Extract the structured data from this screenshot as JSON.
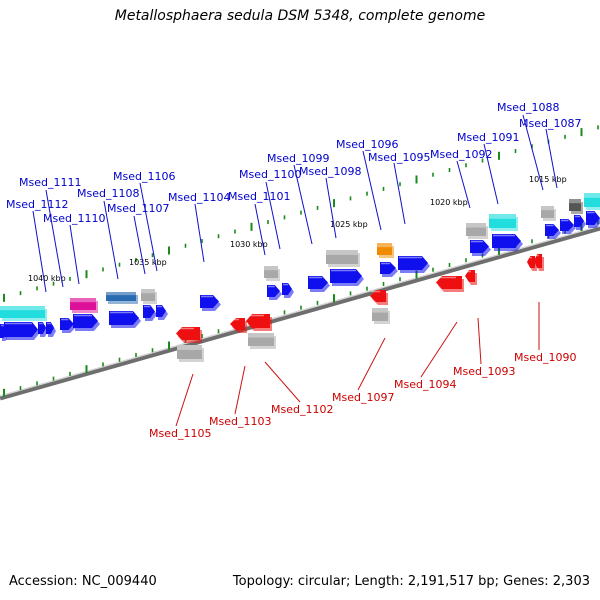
{
  "title": "Metallosphaera sedula DSM 5348, complete genome",
  "footer": {
    "accession": "Accession: NC_009440",
    "summary": "Topology: circular; Length: 2,191,517 bp; Genes: 2,303"
  },
  "colors": {
    "top_label": "#0000cc",
    "bottom_label": "#cc0000",
    "forward_gene": "#1010ee",
    "reverse_gene": "#ee1010",
    "tick": "#1a8a1a",
    "backbone": "#808080"
  },
  "scale_labels": [
    "1015 kbp",
    "1020 kbp",
    "1025 kbp",
    "1030 kbp",
    "1035 kbp",
    "1040 kbp"
  ],
  "top_gene_labels": [
    "Msed_1088",
    "Msed_1087",
    "Msed_1091",
    "Msed_1096",
    "Msed_1092",
    "Msed_1095",
    "Msed_1099",
    "Msed_1106",
    "Msed_1100",
    "Msed_1098",
    "Msed_1111",
    "Msed_1108",
    "Msed_1104",
    "Msed_1101",
    "Msed_1112",
    "Msed_1107",
    "Msed_1110"
  ],
  "bottom_gene_labels": [
    "Msed_1090",
    "Msed_1093",
    "Msed_1094",
    "Msed_1097",
    "Msed_1102",
    "Msed_1103",
    "Msed_1105"
  ]
}
